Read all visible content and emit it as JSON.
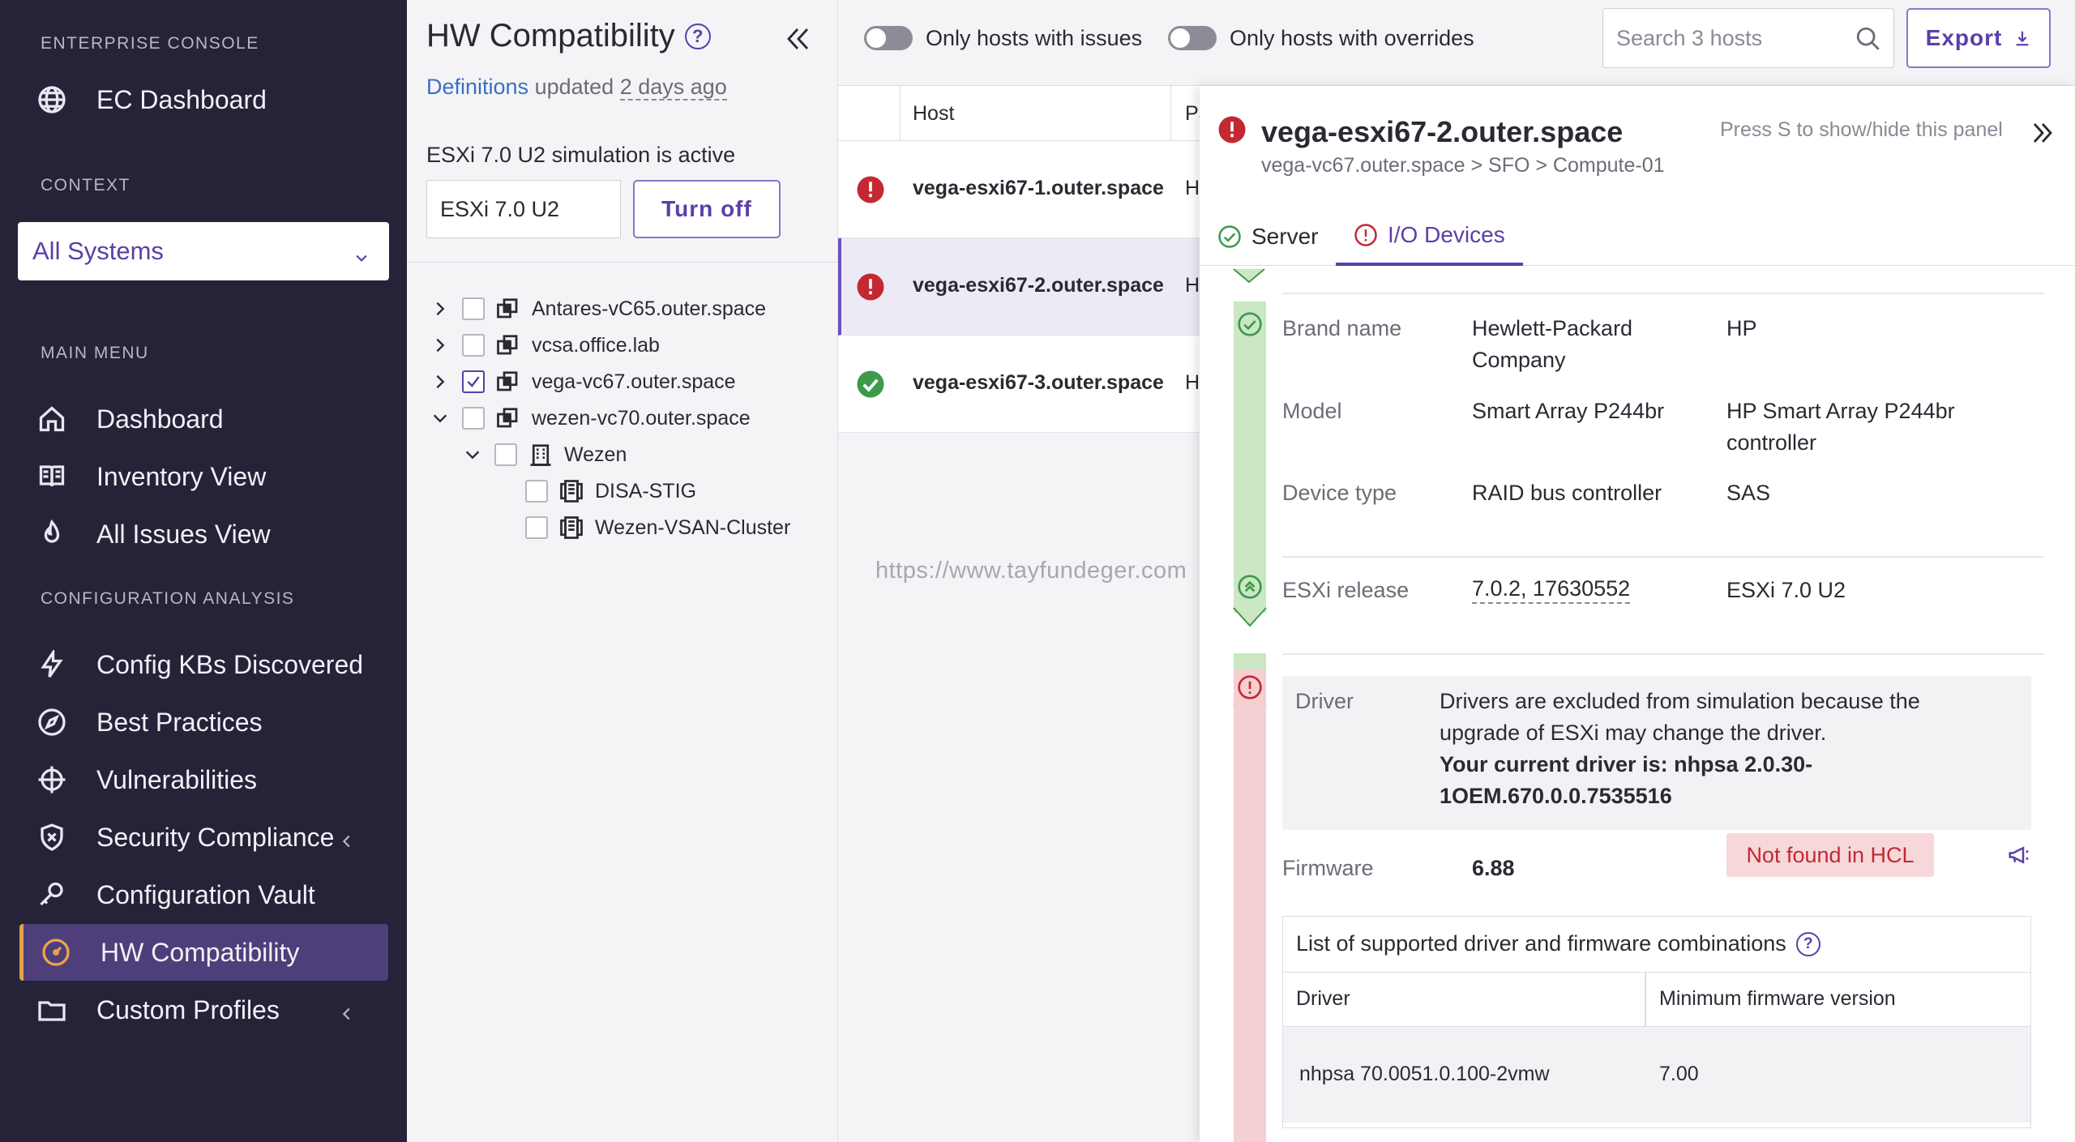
{
  "sidebar": {
    "enterprise_heading": "ENTERPRISE CONSOLE",
    "ec_dashboard": "EC Dashboard",
    "context_heading": "CONTEXT",
    "context_value": "All Systems",
    "main_menu_heading": "MAIN MENU",
    "main_items": [
      {
        "label": "Dashboard",
        "icon": "home-icon"
      },
      {
        "label": "Inventory View",
        "icon": "book-icon"
      },
      {
        "label": "All Issues View",
        "icon": "flame-icon"
      }
    ],
    "config_heading": "CONFIGURATION ANALYSIS",
    "config_items": [
      {
        "label": "Config KBs Discovered",
        "icon": "bolt-icon"
      },
      {
        "label": "Best Practices",
        "icon": "compass-icon"
      },
      {
        "label": "Vulnerabilities",
        "icon": "crosshair-icon"
      },
      {
        "label": "Security Compliance",
        "icon": "shield-icon"
      },
      {
        "label": "Configuration Vault",
        "icon": "key-icon"
      },
      {
        "label": "HW Compatibility",
        "icon": "gauge-icon"
      },
      {
        "label": "Custom Profiles",
        "icon": "folder-icon"
      }
    ],
    "accent_color": "#e0a24a"
  },
  "middle": {
    "title": "HW Compatibility",
    "definitions_link": "Definitions",
    "updated_text": "updated",
    "updated_ago": "2 days ago",
    "simulation_label": "ESXi 7.0 U2 simulation is active",
    "simulation_value": "ESXi 7.0 U2",
    "turn_off_label": "Turn off",
    "tree": [
      {
        "label": "Antares-vC65.outer.space",
        "checked": false
      },
      {
        "label": "vcsa.office.lab",
        "checked": false
      },
      {
        "label": "vega-vc67.outer.space",
        "checked": true
      },
      {
        "label": "wezen-vc70.outer.space",
        "checked": false
      },
      {
        "label": "Wezen",
        "checked": false
      },
      {
        "label": "DISA-STIG",
        "checked": false
      },
      {
        "label": "Wezen-VSAN-Cluster",
        "checked": false
      }
    ]
  },
  "topbar": {
    "toggle_issues": "Only hosts with issues",
    "toggle_overrides": "Only hosts with overrides",
    "search_placeholder": "Search 3 hosts",
    "export_label": "Export"
  },
  "hosts": {
    "col_host": "Host",
    "col_pa": "Pa",
    "rows": [
      {
        "name": "vega-esxi67-1.outer.space",
        "status": "error",
        "col2": "H"
      },
      {
        "name": "vega-esxi67-2.outer.space",
        "status": "error",
        "col2": "H"
      },
      {
        "name": "vega-esxi67-3.outer.space",
        "status": "ok",
        "col2": "H"
      }
    ],
    "watermark": "https://www.tayfundeger.com"
  },
  "detail": {
    "title": "vega-esxi67-2.outer.space",
    "breadcrumb": "vega-vc67.outer.space > SFO > Compute-01",
    "hint": "Press S to show/hide this panel",
    "tabs": [
      {
        "label": "Server",
        "status": "ok"
      },
      {
        "label": "I/O Devices",
        "status": "error"
      }
    ],
    "brand_label": "Brand name",
    "brand_value_1": "Hewlett-Packard",
    "brand_value_2": "Company",
    "brand_hcl": "HP",
    "model_label": "Model",
    "model_value": "Smart Array P244br",
    "model_hcl_1": "HP Smart Array P244br",
    "model_hcl_2": "controller",
    "devtype_label": "Device type",
    "devtype_value": "RAID bus controller",
    "devtype_hcl": "SAS",
    "release_label": "ESXi release",
    "release_value": "7.0.2, 17630552",
    "release_hcl": "ESXi 7.0 U2",
    "driver_label": "Driver",
    "driver_note_1": "Drivers are excluded from simulation because the",
    "driver_note_2": "upgrade of ESXi may change the driver.",
    "driver_current_1": "Your current driver is: nhpsa 2.0.30-",
    "driver_current_2": "1OEM.670.0.0.7535516",
    "firmware_label": "Firmware",
    "firmware_value": "6.88",
    "firmware_badge": "Not found in HCL",
    "combo_title": "List of supported driver and firmware combinations",
    "combo_col_driver": "Driver",
    "combo_col_fw": "Minimum firmware version",
    "combo_rows": [
      {
        "driver": "nhpsa 70.0051.0.100-2vmw",
        "fw": "7.00"
      }
    ]
  }
}
